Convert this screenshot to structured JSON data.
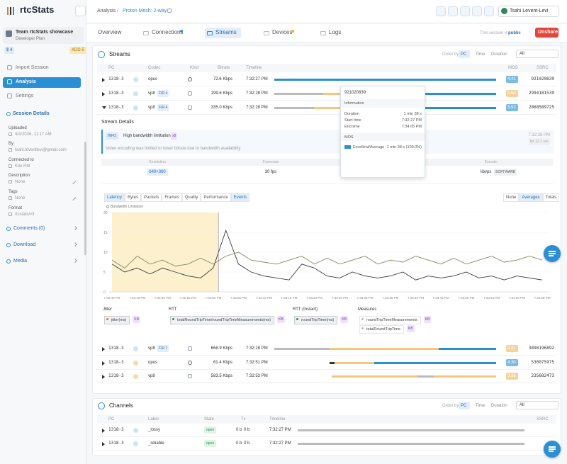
{
  "sidebar": {
    "brand": "rtcStats",
    "team": "Team rtcStats showcase",
    "plan": "Developer Plan",
    "credits": "$ 4",
    "add": "ADD 5",
    "nav": [
      "Import Session",
      "Analysis",
      "Settings"
    ],
    "session_details": "Session Details",
    "details": [
      {
        "label": "Uploaded",
        "value": "4/3/2026, 11:17 AM"
      },
      {
        "label": "By",
        "value": "tsahi.leventlevi@gmail.com"
      },
      {
        "label": "Connected to",
        "value": "Kite RM"
      },
      {
        "label": "Description",
        "value": "None"
      },
      {
        "label": "Tags",
        "value": "None"
      },
      {
        "label": "Format",
        "value": "rtcstats/v3"
      }
    ],
    "sections": [
      "Comments (0)",
      "Download",
      "Media"
    ]
  },
  "topbar": {
    "breadcrumb": "Analysis",
    "separator": "/",
    "session": "Proton Mesh: 2-way",
    "user": "Tsahi Levent-Levi"
  },
  "tabs": [
    "Overview",
    "Connections",
    "Streams",
    "Devices",
    "Logs"
  ],
  "share": {
    "note": "This session is",
    "state": "public",
    "button": "Unshare"
  },
  "streams": {
    "title": "Streams",
    "order_by": "Order by",
    "order_options": [
      "PC",
      "Time",
      "Duration"
    ],
    "filter": "All",
    "columns": [
      "PC",
      "Codec",
      "Kind",
      "Bitrate",
      "Timeline",
      "MOS",
      "SSRC"
    ],
    "rows": [
      {
        "pc": "1318-3",
        "codec": "opus",
        "bitrate": "72.6 Kbps",
        "start": "7:32:27 PM",
        "mos": "4.41",
        "mos_color": "#5aa9e6",
        "ssrc": "921020839"
      },
      {
        "pc": "1318-3",
        "codec": "vp8",
        "fir": "FIR 4",
        "bitrate": "199.6 Kbps",
        "start": "7:32:28 PM",
        "mos": "3.53",
        "mos_color": "#f5c77e",
        "ssrc": "2994181539"
      },
      {
        "pc": "1318-3",
        "codec": "vp8",
        "fir": "FIR 4",
        "bitrate": "335.0 Kbps",
        "start": "7:32:28 PM",
        "mos": "3.52",
        "mos_color": "#5aa9e6",
        "ssrc": "2868589725"
      },
      {
        "pc": "1318-3",
        "codec": "vp8",
        "fir": "FIR 7",
        "bitrate": "668.9 Kbps",
        "start": "7:32:28 PM",
        "mos": "3.41",
        "mos_color": "#f5c77e",
        "ssrc": "3898196892"
      },
      {
        "pc": "1318-3",
        "codec": "opus",
        "bitrate": "61.4 Kbps",
        "start": "7:32:51 PM",
        "mos": "4.30",
        "mos_color": "#5aa9e6",
        "ssrc": "530075975"
      },
      {
        "pc": "1318-3",
        "codec": "vp8",
        "bitrate": "583.5 Kbps",
        "start": "7:32:53 PM",
        "mos": "3.28",
        "mos_color": "#f5c77e",
        "ssrc": "235682473"
      }
    ]
  },
  "tooltip": {
    "id": "921020839",
    "section": "Information",
    "items": [
      {
        "label": "Duration",
        "value": "1 min 38 s"
      },
      {
        "label": "Start time",
        "value": "7:32:27 PM"
      },
      {
        "label": "End time",
        "value": "7:34:05 PM"
      }
    ],
    "mos_title": "MOS",
    "mos_label": "Excellent/Average",
    "mos_value": "1 min 38 s (100.0%)"
  },
  "stream_details": {
    "title": "Stream Details",
    "alert": {
      "level": "INFO",
      "title": "High bandwidth limitation",
      "count": "x8",
      "text": "Video encoding was limited to lower bitrate due to bandwidth availability",
      "time": "7:32:28 PM",
      "duration": "for 12.2 sec"
    },
    "columns": [
      "Resolution",
      "Framerate",
      "Mode",
      "Encoder"
    ],
    "resolution": "640×360",
    "framerate": "30 fps",
    "mode": "L1T3",
    "mode_tag": "SIMULCAST",
    "encoder": "libvpx",
    "encoder_tag": "SOFTWARE",
    "chart_tabs": [
      "Latency",
      "Bytes",
      "Packets",
      "Frames",
      "Quality",
      "Performance",
      "Events"
    ],
    "aggregations": [
      "None",
      "Averages",
      "Totals"
    ],
    "chart": {
      "legend": "Bandwidth Limitation",
      "ylim": [
        0,
        20
      ],
      "yticks": [
        0,
        5,
        10,
        15,
        20
      ],
      "x_labels": [
        "7:32:40 PM",
        "7:32:45 PM",
        "7:32:50 PM",
        "7:32:55 PM",
        "7:33:00 PM",
        "7:33:05 PM",
        "7:33:10 PM",
        "7:33:15 PM",
        "7:33:20 PM",
        "7:33:25 PM",
        "7:33:30 PM",
        "7:33:35 PM",
        "7:33:40 PM",
        "7:33:45 PM",
        "7:33:50 PM",
        "7:33:55 PM",
        "7:34:00 PM",
        "7:34:05 PM"
      ],
      "series": [
        {
          "color": "#3a3a3a",
          "values": [
            7,
            5,
            6,
            4.5,
            6,
            5,
            4,
            3.5,
            6,
            15.5,
            7,
            5,
            4,
            3.5,
            3,
            7,
            6,
            4,
            3.5,
            5,
            4,
            3.5,
            4,
            5,
            3,
            4,
            3.5,
            4,
            5,
            3.5,
            4,
            3,
            4,
            3.5,
            3
          ]
        },
        {
          "color": "#7d8c5c",
          "values": [
            8,
            6,
            9,
            7,
            8,
            6.5,
            7,
            8.5,
            7,
            9,
            10,
            8,
            7.5,
            7,
            8,
            9,
            7,
            8.5,
            7,
            8,
            9,
            7,
            8,
            7.5,
            9,
            8,
            7,
            8.5,
            7,
            8,
            9,
            7.5,
            8,
            9,
            8
          ]
        }
      ]
    },
    "metrics": [
      {
        "title": "Jitter",
        "items": [
          "jitter(ms)"
        ]
      },
      {
        "title": "RTT",
        "items": [
          "totalRoundTripTime/roundTripTimeMeasurements(ms)"
        ]
      },
      {
        "title": "RTT (Instant)",
        "items": [
          "roundTripTime(ms)"
        ]
      },
      {
        "title": "Measures",
        "items": [
          "roundTripTimeMeasurements",
          "totalRoundTripTime"
        ]
      }
    ],
    "unit_tag": "KB"
  },
  "channels": {
    "title": "Channels",
    "columns": [
      "PC",
      "Label",
      "State",
      "Tx",
      "Timeline",
      "SSRC"
    ],
    "rows": [
      {
        "pc": "1318-3",
        "label": "_lossy",
        "state": "open",
        "sent": "0 b",
        "received": "0 b",
        "start": "7:32:27 PM"
      },
      {
        "pc": "1318-3",
        "label": "_reliable",
        "state": "open",
        "sent": "0 b",
        "received": "0 b",
        "start": "7:32:27 PM"
      }
    ]
  }
}
